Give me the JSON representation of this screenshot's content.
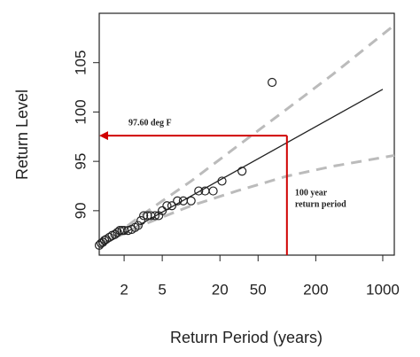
{
  "chart_data": {
    "type": "return-level",
    "x_label": "Return Period (years)",
    "y_label": "Return Level",
    "log_x": true,
    "xlim": [
      1.1,
      1320
    ],
    "xticks": [
      2,
      5,
      20,
      50,
      200,
      1000
    ],
    "ylim": [
      85.5,
      110
    ],
    "yticks": [
      90,
      95,
      100,
      105
    ],
    "lines": [
      {
        "color": "#222222",
        "style": "solid",
        "x": [
          1.1,
          1000
        ],
        "values": [
          86.3,
          102.3
        ]
      },
      {
        "color": "#bbbbbb",
        "style": "dashed",
        "x": [
          1.1,
          3,
          10,
          30,
          100,
          300,
          1320
        ],
        "values": [
          86.3,
          89.5,
          93.0,
          96.5,
          100.3,
          103.8,
          108.8
        ]
      },
      {
        "color": "#bbbbbb",
        "style": "dashed",
        "x": [
          1.1,
          3,
          10,
          30,
          100,
          300,
          1320
        ],
        "values": [
          86.5,
          88.5,
          90.5,
          92.0,
          93.5,
          94.5,
          95.6
        ]
      }
    ],
    "points": {
      "color": "#222222",
      "x": [
        1.1,
        1.15,
        1.2,
        1.25,
        1.3,
        1.4,
        1.5,
        1.6,
        1.7,
        1.8,
        1.9,
        2.0,
        2.2,
        2.4,
        2.6,
        2.8,
        3.0,
        3.2,
        3.5,
        3.8,
        4.2,
        4.6,
        5.0,
        5.6,
        6.3,
        7.2,
        8.3,
        10,
        12,
        14,
        17,
        21,
        34,
        70
      ],
      "values": [
        86.5,
        86.7,
        86.8,
        87.0,
        87.1,
        87.3,
        87.5,
        87.6,
        87.8,
        88.0,
        88.0,
        88.0,
        88.0,
        88.1,
        88.3,
        88.5,
        89.0,
        89.5,
        89.5,
        89.5,
        89.5,
        89.5,
        90.0,
        90.5,
        90.5,
        91.0,
        91.0,
        91.0,
        92.0,
        92.0,
        92.0,
        93.0,
        94.0,
        103.0
      ]
    },
    "annotation": {
      "color": "#d00000",
      "level_text": "97.60 deg F",
      "level": 97.6,
      "period": 100,
      "period_text": [
        "100 year",
        "return period"
      ]
    }
  }
}
